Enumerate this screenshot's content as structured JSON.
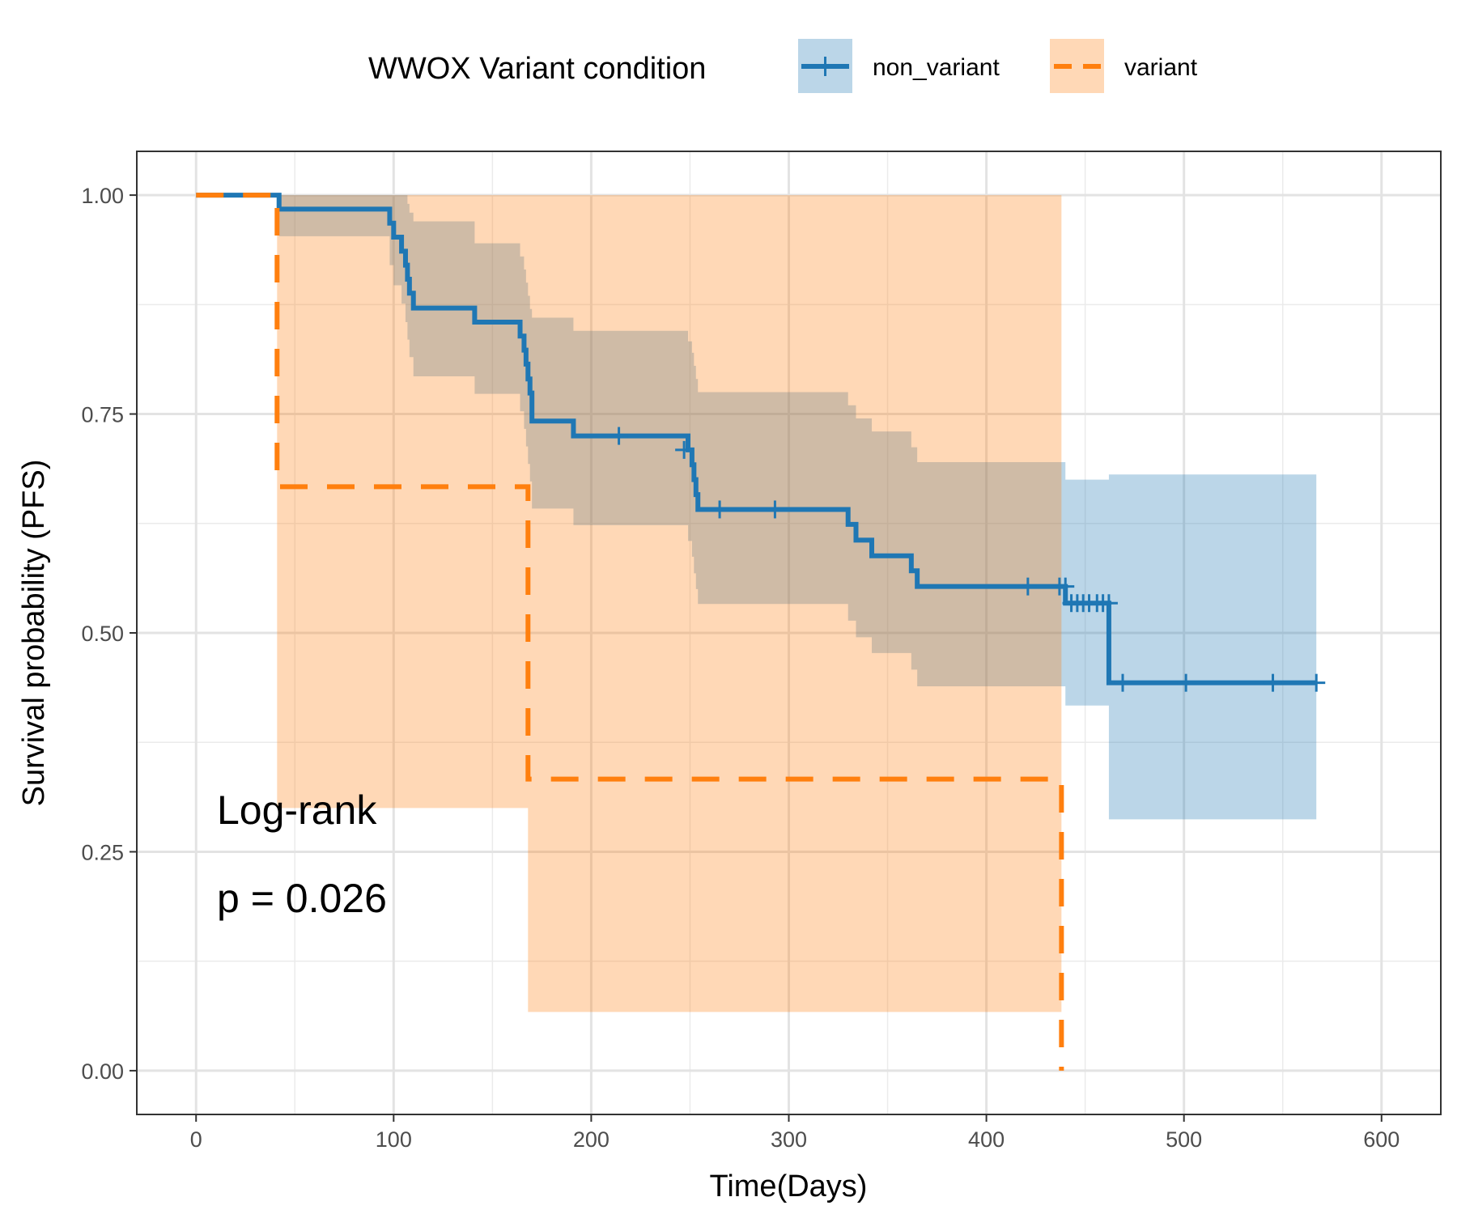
{
  "chart_data": {
    "type": "line",
    "subtype": "kaplan-meier",
    "title": "",
    "xlabel": "Time(Days)",
    "ylabel": "Survival probability (PFS)",
    "xlim": [
      -30,
      630
    ],
    "ylim": [
      -0.05,
      1.05
    ],
    "xticks": [
      0,
      100,
      200,
      300,
      400,
      500,
      600
    ],
    "yticks": [
      0,
      0.25,
      0.5,
      0.75,
      1.0
    ],
    "xtick_labels": [
      "0",
      "100",
      "200",
      "300",
      "400",
      "500",
      "600"
    ],
    "ytick_labels": [
      "0.00",
      "0.25",
      "0.50",
      "0.75",
      "1.00"
    ],
    "grid": true,
    "legend": {
      "title": "WWOX Variant condition",
      "placement": "top",
      "entries": [
        "non_variant",
        "variant"
      ]
    },
    "annotations": [
      "Log-rank",
      "p = 0.026"
    ],
    "series": [
      {
        "name": "non_variant",
        "color": "#1f77b4",
        "line_style": "solid",
        "steps": [
          [
            0,
            1.0
          ],
          [
            42,
            0.984
          ],
          [
            98,
            0.968
          ],
          [
            100,
            0.952
          ],
          [
            104,
            0.936
          ],
          [
            106,
            0.92
          ],
          [
            107,
            0.904
          ],
          [
            108,
            0.888
          ],
          [
            110,
            0.871
          ],
          [
            141,
            0.855
          ],
          [
            164,
            0.839
          ],
          [
            166,
            0.823
          ],
          [
            167,
            0.807
          ],
          [
            168,
            0.79
          ],
          [
            169,
            0.774
          ],
          [
            170,
            0.742
          ],
          [
            191,
            0.725
          ],
          [
            249,
            0.709
          ],
          [
            251,
            0.692
          ],
          [
            252,
            0.675
          ],
          [
            253,
            0.658
          ],
          [
            254,
            0.641
          ],
          [
            330,
            0.624
          ],
          [
            334,
            0.606
          ],
          [
            342,
            0.588
          ],
          [
            362,
            0.571
          ],
          [
            365,
            0.553
          ],
          [
            440,
            0.534
          ],
          [
            462,
            0.443
          ],
          [
            567,
            0.443
          ]
        ],
        "censored": [
          [
            214,
            0.725
          ],
          [
            247,
            0.709
          ],
          [
            265,
            0.641
          ],
          [
            293,
            0.641
          ],
          [
            421,
            0.553
          ],
          [
            437,
            0.553
          ],
          [
            440,
            0.553
          ],
          [
            443,
            0.534
          ],
          [
            446,
            0.534
          ],
          [
            449,
            0.534
          ],
          [
            452,
            0.534
          ],
          [
            456,
            0.534
          ],
          [
            459,
            0.534
          ],
          [
            462,
            0.534
          ],
          [
            469,
            0.443
          ],
          [
            501,
            0.443
          ],
          [
            545,
            0.443
          ],
          [
            567,
            0.443
          ]
        ],
        "ci_band": [
          [
            0,
            1.0,
            1.0
          ],
          [
            42,
            0.953,
            1.0
          ],
          [
            98,
            0.92,
            1.0
          ],
          [
            100,
            0.897,
            1.0
          ],
          [
            104,
            0.876,
            1.0
          ],
          [
            106,
            0.855,
            1.0
          ],
          [
            107,
            0.835,
            0.99
          ],
          [
            108,
            0.815,
            0.98
          ],
          [
            110,
            0.793,
            0.97
          ],
          [
            141,
            0.773,
            0.945
          ],
          [
            164,
            0.753,
            0.93
          ],
          [
            166,
            0.733,
            0.915
          ],
          [
            167,
            0.713,
            0.9
          ],
          [
            168,
            0.693,
            0.885
          ],
          [
            169,
            0.673,
            0.87
          ],
          [
            170,
            0.642,
            0.86
          ],
          [
            191,
            0.623,
            0.845
          ],
          [
            249,
            0.605,
            0.833
          ],
          [
            251,
            0.587,
            0.82
          ],
          [
            252,
            0.568,
            0.805
          ],
          [
            253,
            0.55,
            0.79
          ],
          [
            254,
            0.533,
            0.775
          ],
          [
            330,
            0.514,
            0.76
          ],
          [
            334,
            0.495,
            0.745
          ],
          [
            342,
            0.477,
            0.73
          ],
          [
            362,
            0.458,
            0.712
          ],
          [
            365,
            0.439,
            0.695
          ],
          [
            440,
            0.417,
            0.675
          ],
          [
            462,
            0.287,
            0.681
          ],
          [
            567,
            0.287,
            0.681
          ]
        ]
      },
      {
        "name": "variant",
        "color": "#ff7f0e",
        "line_style": "dashed",
        "steps": [
          [
            0,
            1.0
          ],
          [
            41,
            0.667
          ],
          [
            168,
            0.333
          ],
          [
            438,
            0.0
          ]
        ],
        "censored": [],
        "ci_band": [
          [
            0,
            1.0,
            1.0
          ],
          [
            41,
            0.3,
            1.0
          ],
          [
            168,
            0.067,
            1.0
          ],
          [
            438,
            0.067,
            1.0
          ]
        ]
      }
    ]
  }
}
